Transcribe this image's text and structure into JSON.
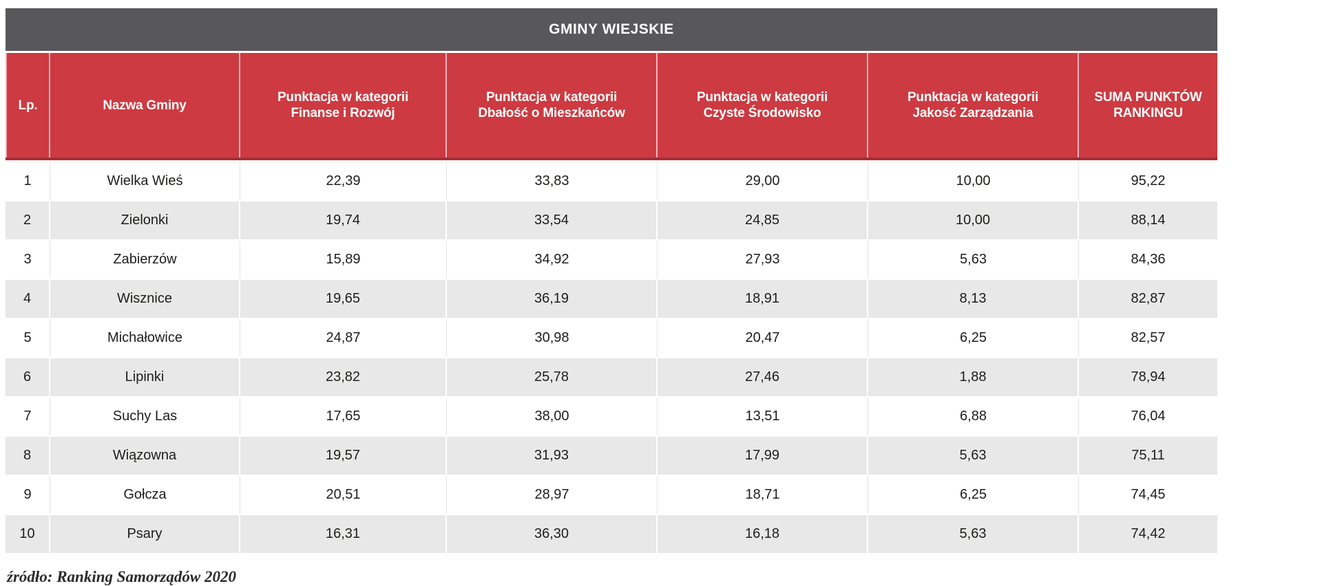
{
  "colors": {
    "accent_red": "#cd3a41",
    "header_border_pink": "#edb3bd",
    "header_bottom_red": "#a92b37",
    "title_bar_gray": "#58585a",
    "alt_row_gray": "#e8e8e8",
    "text_dark": "#1d1d1b"
  },
  "chart_data": {
    "type": "table",
    "title": "GMINY WIEJSKIE",
    "columns": [
      {
        "l1": "Lp.",
        "l2": ""
      },
      {
        "l1": "Nazwa Gminy",
        "l2": ""
      },
      {
        "l1": "Punktacja w kategorii",
        "l2": "Finanse i Rozwój"
      },
      {
        "l1": "Punktacja w kategorii",
        "l2": "Dbałość o Mieszkańców"
      },
      {
        "l1": "Punktacja w kategorii",
        "l2": "Czyste Środowisko"
      },
      {
        "l1": "Punktacja w kategorii",
        "l2": "Jakość Zarządzania"
      },
      {
        "l1": "SUMA PUNKTÓW",
        "l2": "RANKINGU"
      }
    ],
    "rows": [
      {
        "lp": "1",
        "name": "Wielka Wieś",
        "values": [
          "22,39",
          "33,83",
          "29,00",
          "10,00",
          "95,22"
        ]
      },
      {
        "lp": "2",
        "name": "Zielonki",
        "values": [
          "19,74",
          "33,54",
          "24,85",
          "10,00",
          "88,14"
        ]
      },
      {
        "lp": "3",
        "name": "Zabierzów",
        "values": [
          "15,89",
          "34,92",
          "27,93",
          "5,63",
          "84,36"
        ]
      },
      {
        "lp": "4",
        "name": "Wisznice",
        "values": [
          "19,65",
          "36,19",
          "18,91",
          "8,13",
          "82,87"
        ]
      },
      {
        "lp": "5",
        "name": "Michałowice",
        "values": [
          "24,87",
          "30,98",
          "20,47",
          "6,25",
          "82,57"
        ]
      },
      {
        "lp": "6",
        "name": "Lipinki",
        "values": [
          "23,82",
          "25,78",
          "27,46",
          "1,88",
          "78,94"
        ]
      },
      {
        "lp": "7",
        "name": "Suchy Las",
        "values": [
          "17,65",
          "38,00",
          "13,51",
          "6,88",
          "76,04"
        ]
      },
      {
        "lp": "8",
        "name": "Wiązowna",
        "values": [
          "19,57",
          "31,93",
          "17,99",
          "5,63",
          "75,11"
        ]
      },
      {
        "lp": "9",
        "name": "Gołcza",
        "values": [
          "20,51",
          "28,97",
          "18,71",
          "6,25",
          "74,45"
        ]
      },
      {
        "lp": "10",
        "name": "Psary",
        "values": [
          "16,31",
          "36,30",
          "16,18",
          "5,63",
          "74,42"
        ]
      }
    ],
    "source_note": "źródło: Ranking Samorządów 2020"
  }
}
